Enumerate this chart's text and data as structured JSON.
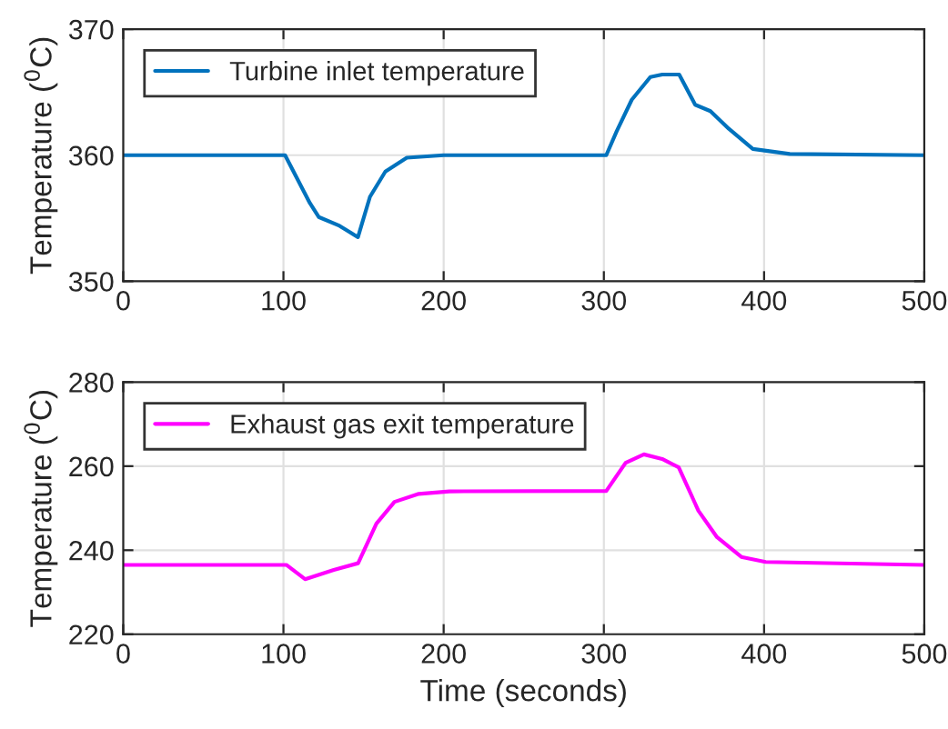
{
  "chart_data": [
    {
      "type": "line",
      "ylabel": "Temperature ($^{0}$C)",
      "x": [
        0,
        101,
        116.5,
        122,
        135,
        146.5,
        154,
        163.6,
        177,
        200,
        301.5,
        308,
        317.4,
        329,
        336.4,
        347,
        357,
        366.5,
        378,
        393,
        416,
        500
      ],
      "xlim": [
        0,
        500
      ],
      "xticks": [
        0,
        100,
        200,
        300,
        400,
        500
      ],
      "ylim": [
        350,
        370
      ],
      "yticks": [
        350,
        360,
        370
      ],
      "grid": true,
      "legend": "top left",
      "series": [
        {
          "name": "Turbine inlet temperature",
          "color": "#0072bd",
          "values": [
            360,
            360,
            356.2,
            355.1,
            354.4,
            353.5,
            356.7,
            358.7,
            359.8,
            360,
            360,
            361.9,
            364.4,
            366.2,
            366.4,
            366.4,
            364.0,
            363.5,
            362.1,
            360.5,
            360.1,
            360
          ]
        }
      ]
    },
    {
      "type": "line",
      "xlabel": "Time (seconds)",
      "ylabel": "Temperature ($^{0}$C)",
      "x": [
        0,
        101.8,
        113.5,
        131.4,
        146.6,
        158,
        169.3,
        184.5,
        203.5,
        301.5,
        313.6,
        325,
        336.4,
        346.7,
        359,
        370.6,
        385.8,
        401,
        500
      ],
      "xlim": [
        0,
        500
      ],
      "xticks": [
        0,
        100,
        200,
        300,
        400,
        500
      ],
      "ylim": [
        220,
        280
      ],
      "yticks": [
        220,
        240,
        260,
        280
      ],
      "grid": true,
      "legend": "top left",
      "series": [
        {
          "name": "Exhaust gas exit temperature",
          "color": "#ff00ff",
          "values": [
            236.5,
            236.5,
            233.1,
            235.3,
            236.9,
            246.3,
            251.5,
            253.4,
            254,
            254.1,
            260.8,
            262.8,
            261.7,
            259.7,
            249.4,
            243.1,
            238.4,
            237.2,
            236.5
          ]
        }
      ]
    }
  ]
}
